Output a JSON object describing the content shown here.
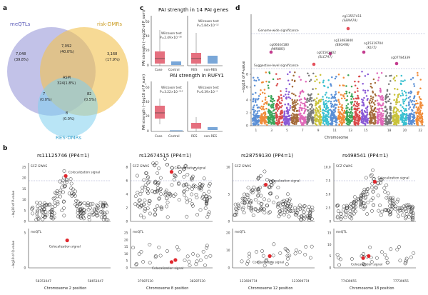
{
  "panel_a": {
    "label": "a",
    "sets": {
      "meqtls": "meQTLs",
      "risk_dmrs": "risk-DMRs",
      "res_dmrs": "RES-DMRs"
    },
    "regions": {
      "meqtl_only": [
        "7,048",
        "(39.8%)"
      ],
      "overlap_mr": [
        "7,092",
        "(40.0%)"
      ],
      "risk_only": [
        "3,168",
        "(17.9%)"
      ],
      "center": [
        "ASM",
        "324(1.8%)"
      ],
      "overlap_me_res": [
        "7",
        "(0.0%)"
      ],
      "overlap_risk_res": [
        "82",
        "(0.5%)"
      ],
      "res_only": [
        "8",
        "(0.0%)"
      ]
    },
    "colors": {
      "meqtls": "#8f8fd6",
      "risk": "#f2c24f",
      "res": "#7fd0ee"
    }
  },
  "panel_c": {
    "label": "c",
    "title_top": "PAI strength in 14 PAI genes",
    "title_bottom": "PAI strength in RUFY1",
    "ylabel": "PAI strength (−log10 of P_sum)",
    "stats": [
      {
        "test": "Wilcoxon test",
        "p": "P=2.49×10⁻³⁸"
      },
      {
        "test": "Wilcoxon test",
        "p": "P=5.84×10⁻¹²"
      },
      {
        "test": "Wilcoxon test",
        "p": "P=3.22×10⁻¹¹⁴"
      },
      {
        "test": "Wilcoxon test",
        "p": "P=6.39×10⁻⁴"
      }
    ],
    "xticks_left": [
      "Case",
      "Control"
    ],
    "xticks_right": [
      "RES",
      "non-RES"
    ],
    "yticks_top": [
      "0",
      "20",
      "40",
      "60"
    ],
    "yticks_bottom": [
      "0",
      "20",
      "40",
      "60"
    ],
    "colors": {
      "case": "#e5707f",
      "control": "#7aa7d8"
    }
  },
  "panel_d": {
    "label": "d",
    "genome_wide": "Genome-wide significance",
    "suggestive": "Suggestive-level significance",
    "ylabel": "−log10 of P-value",
    "xlabel": "Chromosome",
    "yticks": [
      "0",
      "2",
      "4",
      "6",
      "8"
    ],
    "chromosomes": [
      "1",
      "2",
      "3",
      "4",
      "5",
      "6",
      "7",
      "8",
      "9",
      "10",
      "11",
      "12",
      "13",
      "14",
      "15",
      "16",
      "17",
      "18",
      "19",
      "20",
      "21",
      "22"
    ],
    "chrom_labels_shown": [
      "1",
      "3",
      "5",
      "7",
      "9",
      "11",
      "13",
      "15",
      "18",
      "20",
      "22"
    ],
    "top_hits": [
      {
        "cpg": "cg13557411",
        "gene": "(SEMA7A)"
      },
      {
        "cpg": "cg13483840",
        "gene": "(BEGAIN)"
      },
      {
        "cpg": "cg15319704",
        "gene": "(KLF5)"
      },
      {
        "cpg": "cg06444180",
        "gene": "(MIR885)"
      },
      {
        "cpg": "cg01562302",
        "gene": "(SLC7A7)"
      },
      {
        "cpg": "cg07784339",
        "gene": ""
      }
    ]
  },
  "panel_b": {
    "label": "b",
    "gwas_tag": "SCZ GWAS",
    "meqtl_tag": "meQTL",
    "coloc": "Colocalization signal",
    "ylabel_top": "−log10 of P-value",
    "ylabel_bottom": "−log10 of Q-value",
    "plots": [
      {
        "title": "rs11125746 (PP4=1)",
        "xlabel": "Chromosome 2 position",
        "xticks": [
          "58351047",
          "58651047"
        ],
        "yt_top": [
          "0",
          "5",
          "10",
          "15",
          "20",
          "25"
        ],
        "yt_bot": [
          "0",
          "5"
        ]
      },
      {
        "title": "rs12674515 (PP4=1)",
        "xlabel": "Chromosome 8 position",
        "xticks": [
          "37987530",
          "38287530"
        ],
        "yt_top": [
          "0",
          "2",
          "4",
          "6",
          "8"
        ],
        "yt_bot": [
          "0",
          "5",
          "10",
          "15",
          "20",
          "25"
        ]
      },
      {
        "title": "rs28759130 (PP4=1)",
        "xlabel": "Chromosome 12 position",
        "xticks": [
          "123699774",
          "123999774"
        ],
        "yt_top": [
          "0",
          "5",
          "10"
        ],
        "yt_bot": [
          "0",
          "10",
          "20"
        ]
      },
      {
        "title": "rs498541 (PP4=1)",
        "xlabel": "Chromosome 18 position",
        "xticks": [
          "77439655",
          "77739655"
        ],
        "yt_top": [
          "0",
          "2.5",
          "5.0",
          "7.5",
          "10.0"
        ],
        "yt_bot": [
          "0",
          "5",
          "10",
          "15"
        ]
      }
    ]
  }
}
